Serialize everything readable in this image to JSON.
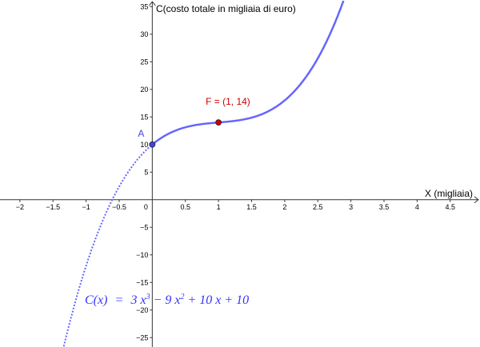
{
  "chart_data": {
    "type": "line",
    "function": {
      "label": "C(x) = 3 x³ − 9 x² + 10 x + 10",
      "coefficients": [
        3,
        -9,
        10,
        10
      ]
    },
    "series": [
      {
        "style": "solid",
        "domain": [
          0,
          3
        ]
      },
      {
        "style": "dotted",
        "domain": [
          -2.2,
          0
        ]
      }
    ],
    "xlabel": "X (migliaia)",
    "ylabel": "C(costo totale in migliaia di euro)",
    "xlim": [
      -2.3,
      4.95
    ],
    "ylim": [
      -26.7,
      36.2
    ],
    "xticks": [
      -2,
      -1.5,
      -1,
      -0.5,
      0,
      0.5,
      1,
      1.5,
      2,
      2.5,
      3,
      3.5,
      4,
      4.5
    ],
    "yticks": [
      -25,
      -20,
      -15,
      -10,
      -5,
      5,
      10,
      15,
      20,
      25,
      30,
      35
    ],
    "points": [
      {
        "name": "A",
        "label": "A",
        "x": 0,
        "y": 10,
        "color": "#4444dd"
      },
      {
        "name": "F",
        "label": "F = (1, 14)",
        "x": 1,
        "y": 14,
        "color": "#cc0000"
      }
    ],
    "formula_parts": {
      "lhs": "C(x)",
      "eq": "=",
      "t1": "3 x",
      "e1": "3",
      "t2": " − 9 x",
      "e2": "2",
      "t3": " + 10 x + 10"
    },
    "curve_color": "#6666ff",
    "grid": false
  }
}
